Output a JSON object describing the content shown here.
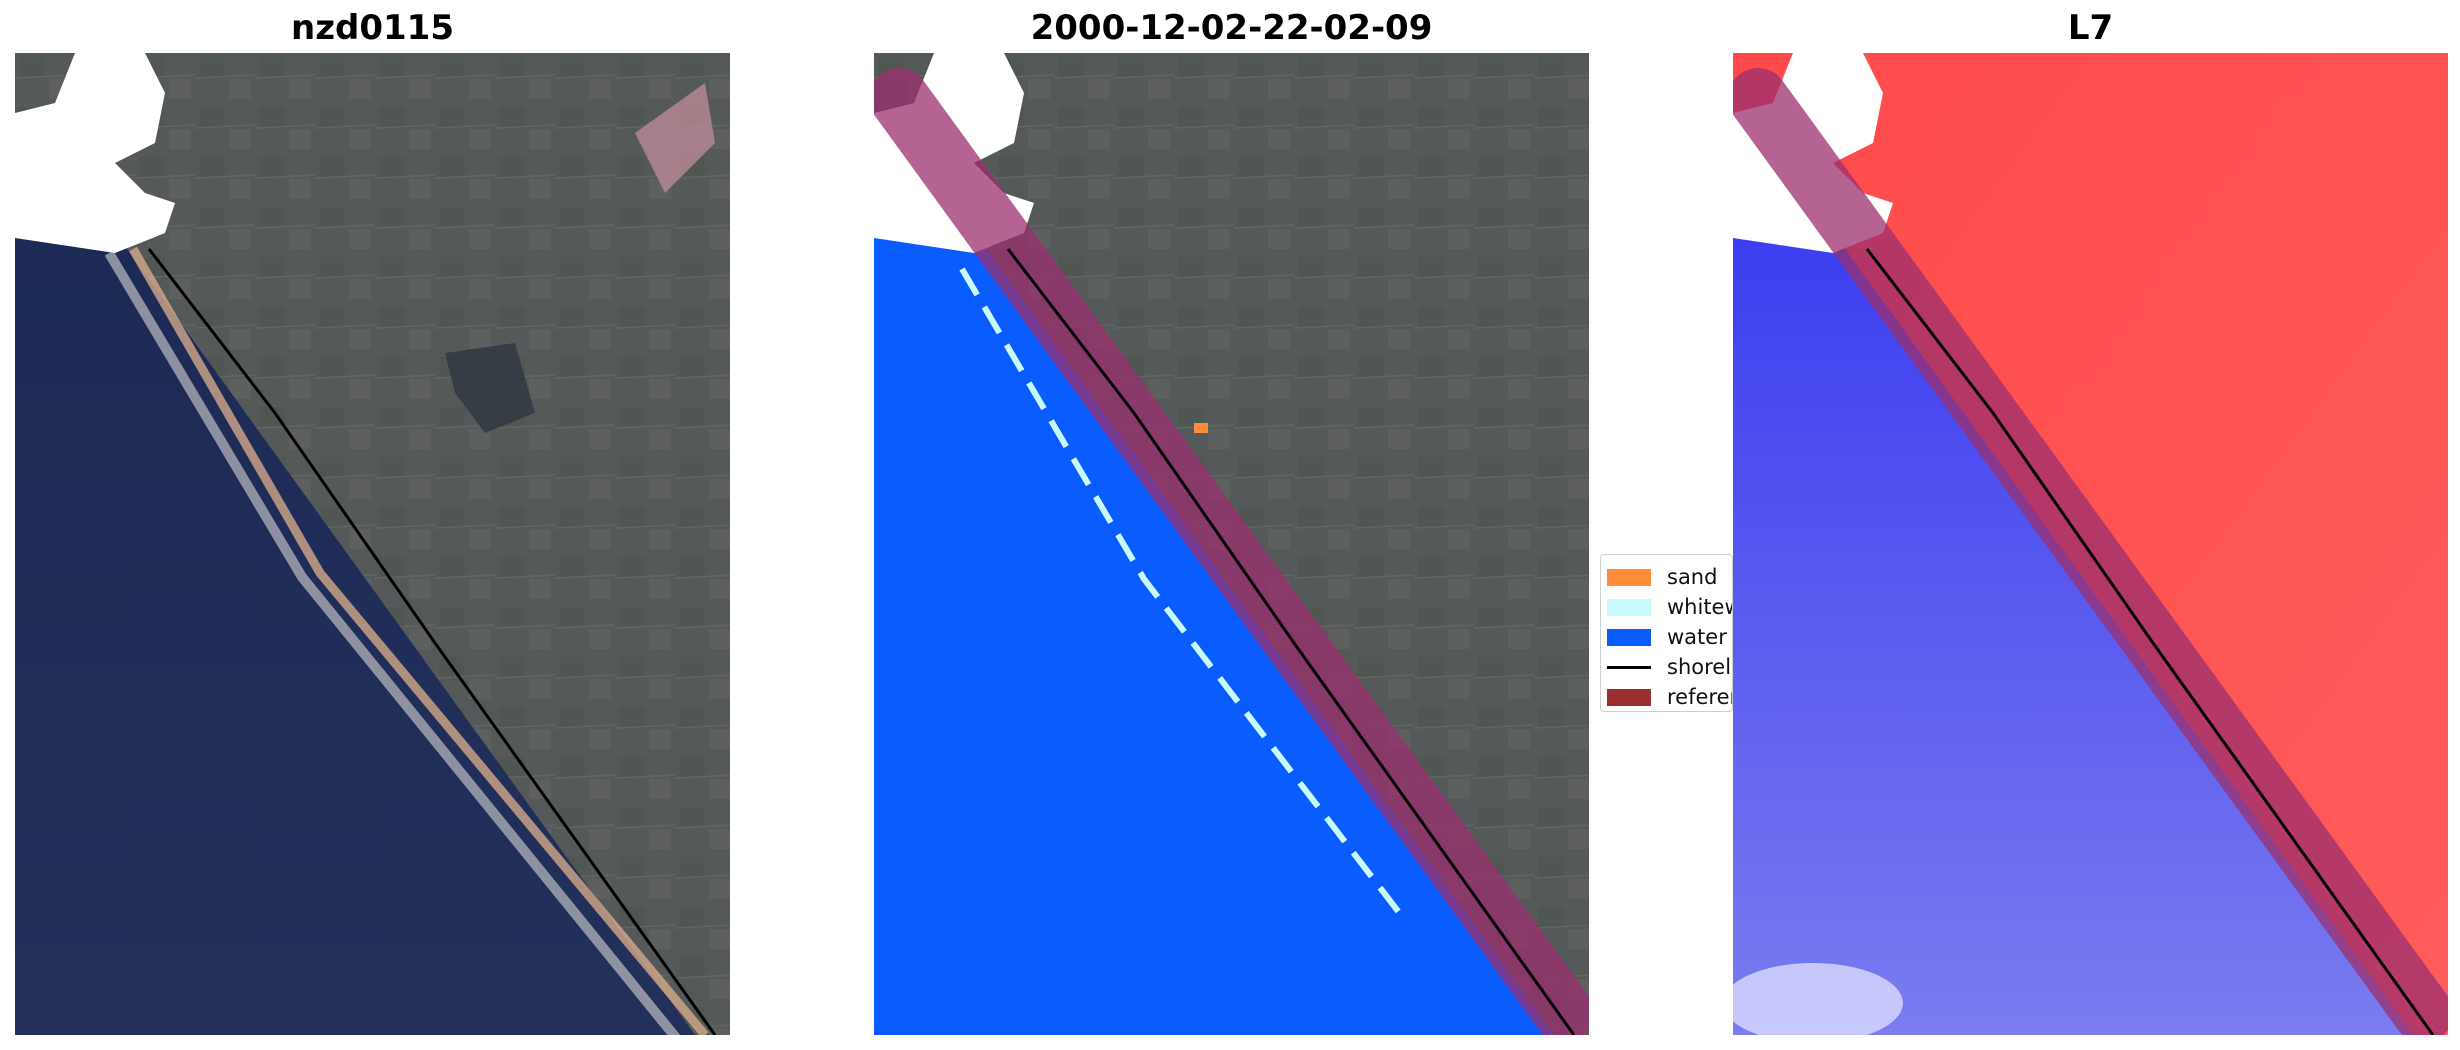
{
  "panels": [
    {
      "title": "nzd0115"
    },
    {
      "title": "2000-12-02-22-02-09"
    },
    {
      "title": "L7"
    }
  ],
  "legend": {
    "items": [
      {
        "label": "sand",
        "color": "#ff8c3a"
      },
      {
        "label": "whitewater",
        "color": "#c8fcfb"
      },
      {
        "label": "water",
        "color": "#0a5cff"
      },
      {
        "label": "shoreline",
        "color": "#000000"
      },
      {
        "label": "reference",
        "color": "#9b2f2f"
      }
    ]
  },
  "colors": {
    "land_rgb": "#55585a",
    "ocean_rgb": "#1f2c55",
    "land_false_color": "#ff4d4d",
    "ocean_false_color": "#3a3cf0",
    "reference_buffer": "#9b2f6e",
    "cloud_mask": "#ffffff"
  }
}
